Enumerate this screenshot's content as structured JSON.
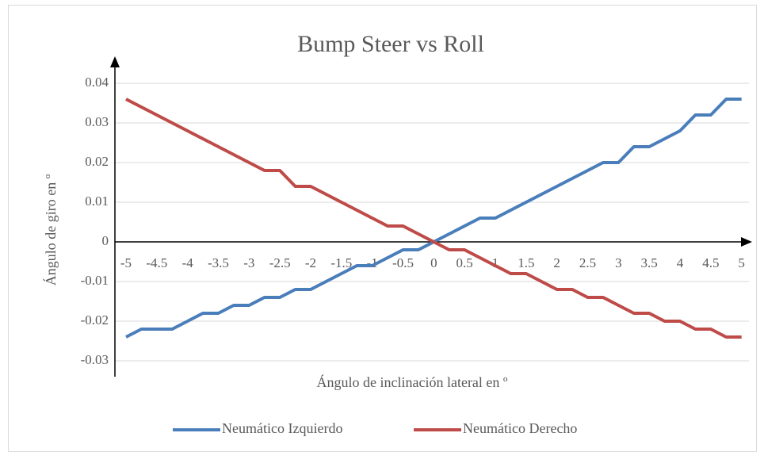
{
  "chart_data": {
    "type": "line",
    "title": "Bump Steer vs Roll",
    "x_label": "Ángulo de inclinación lateral en º",
    "y_label": "Ángulo de giro en º",
    "x": [
      -5,
      -4.75,
      -4.5,
      -4.25,
      -4,
      -3.75,
      -3.5,
      -3.25,
      -3,
      -2.75,
      -2.5,
      -2.25,
      -2,
      -1.75,
      -1.5,
      -1.25,
      -1,
      -0.75,
      -0.5,
      -0.25,
      0,
      0.25,
      0.5,
      0.75,
      1,
      1.25,
      1.5,
      1.75,
      2,
      2.25,
      2.5,
      2.75,
      3,
      3.25,
      3.5,
      3.75,
      4,
      4.25,
      4.5,
      4.75,
      5
    ],
    "series": [
      {
        "name": "Neumático Izquierdo",
        "color": "#4a7ebb",
        "values": [
          -0.024,
          -0.022,
          -0.022,
          -0.022,
          -0.02,
          -0.018,
          -0.018,
          -0.016,
          -0.016,
          -0.014,
          -0.014,
          -0.012,
          -0.012,
          -0.01,
          -0.008,
          -0.006,
          -0.006,
          -0.004,
          -0.002,
          -0.002,
          0,
          0.002,
          0.004,
          0.006,
          0.006,
          0.008,
          0.01,
          0.012,
          0.014,
          0.016,
          0.018,
          0.02,
          0.02,
          0.024,
          0.024,
          0.026,
          0.028,
          0.032,
          0.032,
          0.036,
          0.036
        ]
      },
      {
        "name": "Neumático Derecho",
        "color": "#be4b48",
        "values": [
          0.036,
          0.034,
          0.032,
          0.03,
          0.028,
          0.026,
          0.024,
          0.022,
          0.02,
          0.018,
          0.018,
          0.014,
          0.014,
          0.012,
          0.01,
          0.008,
          0.006,
          0.004,
          0.004,
          0.002,
          0,
          -0.002,
          -0.002,
          -0.004,
          -0.006,
          -0.008,
          -0.008,
          -0.01,
          -0.012,
          -0.012,
          -0.014,
          -0.014,
          -0.016,
          -0.018,
          -0.018,
          -0.02,
          -0.02,
          -0.022,
          -0.022,
          -0.024,
          -0.024
        ]
      }
    ],
    "xlim": [
      -5.18,
      5.12
    ],
    "xticks": [
      -5,
      -4.5,
      -4,
      -3.5,
      -3,
      -2.5,
      -2,
      -1.5,
      -1,
      -0.5,
      0,
      0.5,
      1,
      1.5,
      2,
      2.5,
      3,
      3.5,
      4,
      4.5,
      5
    ],
    "ylim": [
      -0.034,
      0.046
    ],
    "yticks": [
      0.04,
      0.03,
      0.02,
      0.01,
      0,
      -0.01,
      -0.02,
      -0.03
    ],
    "grid": true,
    "legend": "bottom"
  }
}
